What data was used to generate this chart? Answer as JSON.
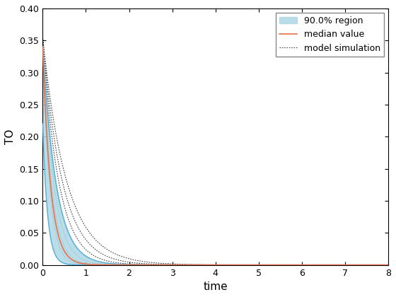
{
  "xlabel": "time",
  "ylabel": "TO",
  "xlim": [
    0,
    8
  ],
  "ylim": [
    0,
    0.4
  ],
  "xticks": [
    0,
    1,
    2,
    3,
    4,
    5,
    6,
    7,
    8
  ],
  "yticks": [
    0,
    0.05,
    0.1,
    0.15,
    0.2,
    0.25,
    0.3,
    0.35,
    0.4
  ],
  "region_fill_color": "#ADD8E6",
  "region_edge_color": "#5AAFD6",
  "median_color": "#E8734A",
  "sim_color": "#444444",
  "legend_labels": [
    "90.0% region",
    "median value",
    "model simulation"
  ],
  "median_k": 5.5,
  "median_A": 0.34,
  "upper_k": 3.2,
  "upper_A": 0.34,
  "lower_k": 9.0,
  "lower_A": 0.22,
  "sim_ks": [
    1.8,
    2.2,
    2.7,
    3.3,
    4.0,
    5.0,
    6.5
  ],
  "sim_A": 0.355
}
